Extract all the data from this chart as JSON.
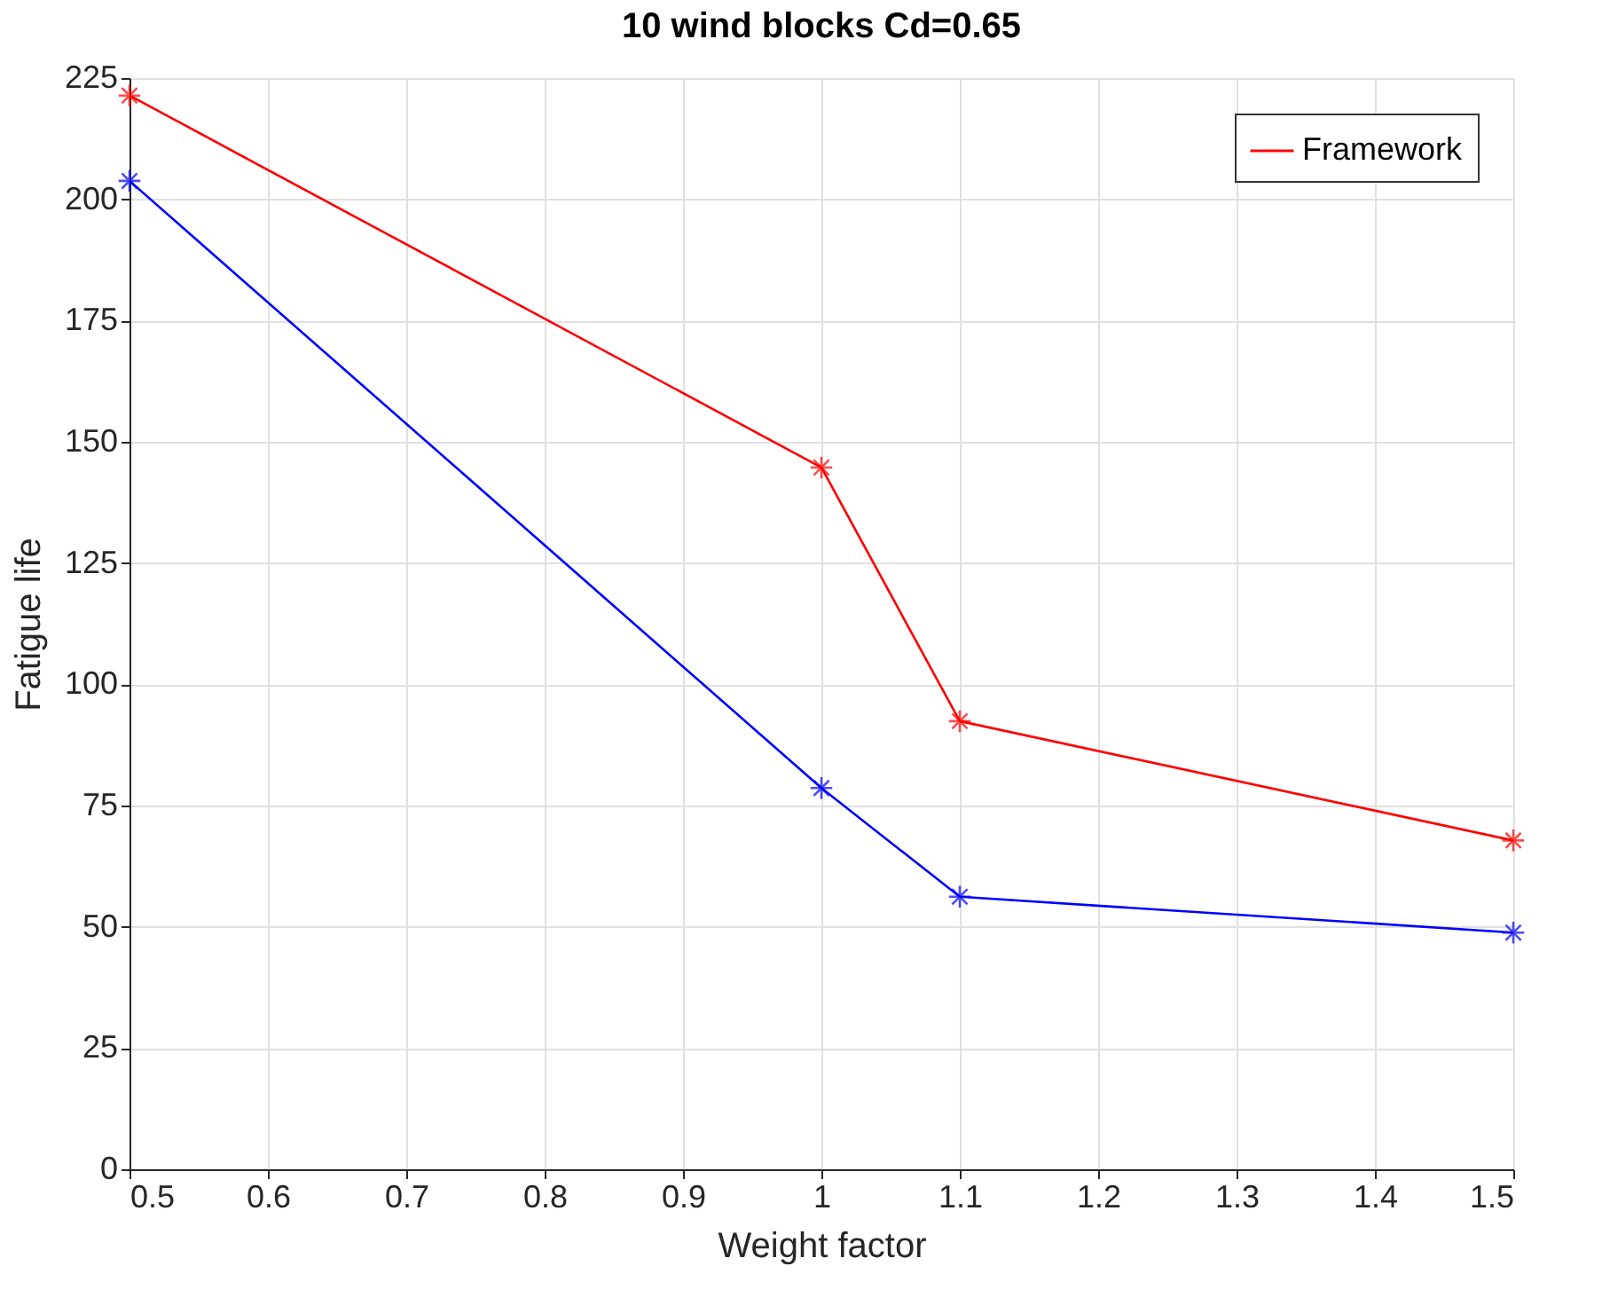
{
  "chart_data": {
    "type": "line",
    "title": "10 wind blocks    Cd=0.65",
    "xlabel": "Weight factor",
    "ylabel": "Fatigue life",
    "x": [
      0.5,
      1,
      1.1,
      1.5
    ],
    "series": [
      {
        "name": "Framework",
        "color": "#ff0000",
        "values": [
          221.4,
          144.7,
          92.4,
          67.8
        ]
      },
      {
        "color": "#0000ff",
        "values": [
          203.8,
          78.6,
          56.2,
          48.8
        ]
      }
    ],
    "xlim": [
      0.5,
      1.5
    ],
    "xticks": [
      0.5,
      0.6,
      0.7,
      0.8,
      0.9,
      1,
      1.1,
      1.2,
      1.3,
      1.4,
      1.5
    ],
    "ylim": [
      0,
      225
    ],
    "yticks": [
      0,
      25,
      50,
      75,
      100,
      125,
      150,
      175,
      200,
      225
    ],
    "grid": true,
    "legend": "top right",
    "marker": "cross",
    "line_style": "solid"
  }
}
